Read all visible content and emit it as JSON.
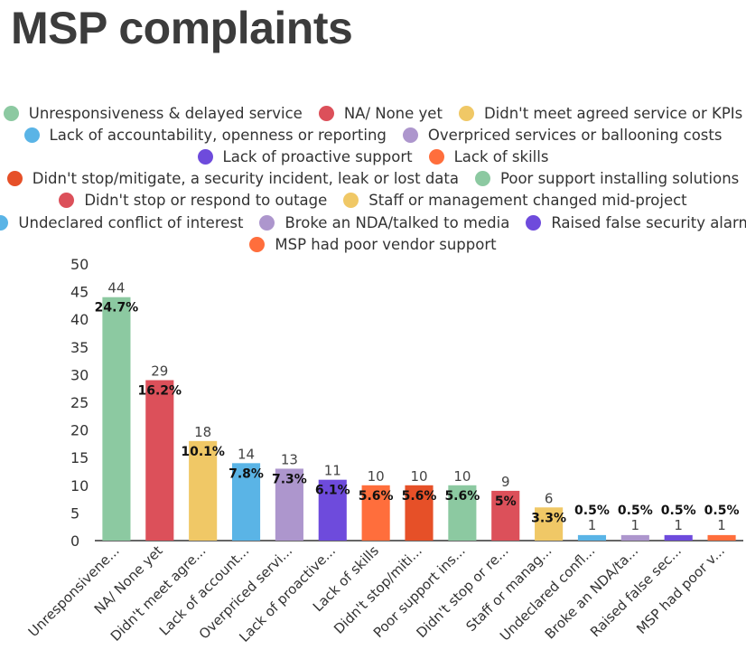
{
  "title": "MSP complaints",
  "chart_data": {
    "type": "bar",
    "title": "MSP complaints",
    "xlabel": "",
    "ylabel": "",
    "ylim": [
      0,
      50
    ],
    "yticks": [
      50,
      45,
      40,
      35,
      30,
      25,
      20,
      15,
      10,
      5,
      0
    ],
    "legend_position": "top",
    "grid": false,
    "categories": [
      "Unresponsiveness & delayed service",
      "NA/ None yet",
      "Didn't meet agreed service or KPIs",
      "Lack of accountability, openness or reporting",
      "Overpriced services or ballooning costs",
      "Lack of proactive support",
      "Lack of skills",
      "Didn't stop/mitigate, a security incident, leak or lost data",
      "Poor support installing solutions",
      "Didn't stop or respond to outage",
      "Staff or management changed mid-project",
      "Undeclared conflict of interest",
      "Broke an NDA/talked to media",
      "Raised false security alarm",
      "MSP had poor vendor support"
    ],
    "tick_labels": [
      "Unresponsivene...",
      "NA/ None yet",
      "Didn't meet agre...",
      "Lack of account...",
      "Overpriced servi...",
      "Lack of proactive...",
      "Lack of skills",
      "Didn't stop/miti...",
      "Poor support ins...",
      "Didn't stop or re...",
      "Staff or manag...",
      "Undeclared confl...",
      "Broke an NDA/ta...",
      "Raised false sec...",
      "MSP had poor v..."
    ],
    "values": [
      44,
      29,
      18,
      14,
      13,
      11,
      10,
      10,
      10,
      9,
      6,
      1,
      1,
      1,
      1
    ],
    "percent_labels": [
      "24.7%",
      "16.2%",
      "10.1%",
      "7.8%",
      "7.3%",
      "6.1%",
      "5.6%",
      "5.6%",
      "5.6%",
      "5%",
      "3.3%",
      "0.5%",
      "0.5%",
      "0.5%",
      "0.5%"
    ],
    "colors": [
      "#8cc9a1",
      "#dc505a",
      "#f0c866",
      "#5ab4e6",
      "#ad96cd",
      "#6e4bdc",
      "#ff6e3c",
      "#e65028",
      "#8cc9a1",
      "#dc505a",
      "#f0c866",
      "#5ab4e6",
      "#ad96cd",
      "#6e4bdc",
      "#ff6e3c"
    ]
  },
  "legend_rows": [
    [
      0,
      1,
      2
    ],
    [
      3,
      4
    ],
    [
      5,
      6
    ],
    [
      7,
      8
    ],
    [
      9,
      10
    ],
    [
      11,
      12,
      13
    ],
    [
      14
    ]
  ]
}
